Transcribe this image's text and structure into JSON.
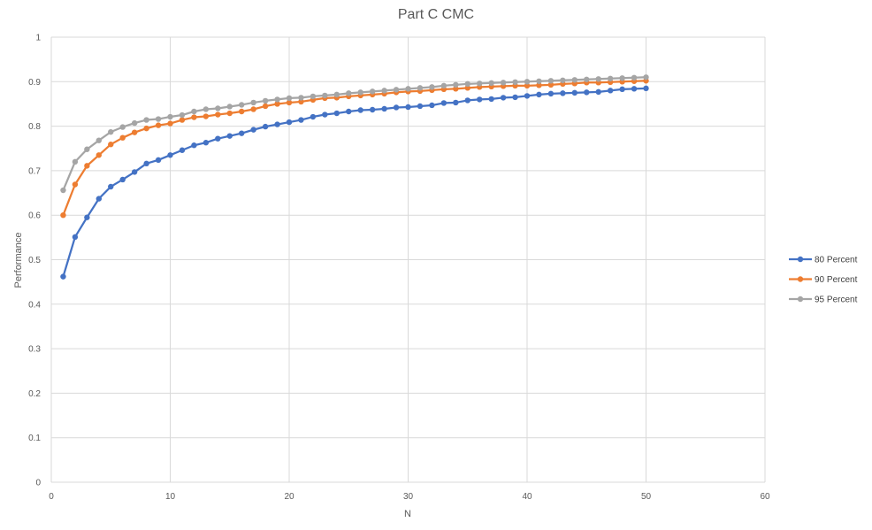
{
  "chart_data": {
    "type": "line",
    "title": "Part C CMC",
    "xlabel": "N",
    "ylabel": "Performance",
    "xlim": [
      0,
      60
    ],
    "ylim": [
      0,
      1
    ],
    "x_ticks": [
      "0",
      "10",
      "20",
      "30",
      "40",
      "50",
      "60"
    ],
    "y_ticks": [
      "0",
      "0.1",
      "0.2",
      "0.3",
      "0.4",
      "0.5",
      "0.6",
      "0.7",
      "0.8",
      "0.9",
      "1"
    ],
    "grid": true,
    "legend_position": "right",
    "x": [
      1,
      2,
      3,
      4,
      5,
      6,
      7,
      8,
      9,
      10,
      11,
      12,
      13,
      14,
      15,
      16,
      17,
      18,
      19,
      20,
      21,
      22,
      23,
      24,
      25,
      26,
      27,
      28,
      29,
      30,
      31,
      32,
      33,
      34,
      35,
      36,
      37,
      38,
      39,
      40,
      41,
      42,
      43,
      44,
      45,
      46,
      47,
      48,
      49,
      50
    ],
    "series": [
      {
        "name": "80 Percent",
        "color": "#4472c4",
        "values": [
          0.462,
          0.551,
          0.595,
          0.637,
          0.664,
          0.68,
          0.697,
          0.716,
          0.724,
          0.735,
          0.746,
          0.757,
          0.763,
          0.772,
          0.778,
          0.784,
          0.792,
          0.799,
          0.804,
          0.809,
          0.814,
          0.821,
          0.826,
          0.829,
          0.833,
          0.836,
          0.837,
          0.839,
          0.842,
          0.843,
          0.845,
          0.847,
          0.852,
          0.853,
          0.858,
          0.86,
          0.861,
          0.864,
          0.865,
          0.868,
          0.871,
          0.873,
          0.874,
          0.875,
          0.876,
          0.877,
          0.88,
          0.883,
          0.884,
          0.885
        ]
      },
      {
        "name": "90 Percent",
        "color": "#ed7d31",
        "values": [
          0.6,
          0.669,
          0.711,
          0.735,
          0.759,
          0.774,
          0.786,
          0.795,
          0.802,
          0.806,
          0.814,
          0.82,
          0.822,
          0.826,
          0.829,
          0.833,
          0.838,
          0.845,
          0.85,
          0.853,
          0.855,
          0.859,
          0.863,
          0.864,
          0.867,
          0.869,
          0.871,
          0.873,
          0.876,
          0.878,
          0.879,
          0.881,
          0.883,
          0.884,
          0.886,
          0.888,
          0.889,
          0.89,
          0.891,
          0.891,
          0.892,
          0.893,
          0.895,
          0.896,
          0.898,
          0.898,
          0.899,
          0.9,
          0.901,
          0.902
        ]
      },
      {
        "name": "95 Percent",
        "color": "#a5a5a5",
        "values": [
          0.656,
          0.72,
          0.748,
          0.768,
          0.787,
          0.798,
          0.807,
          0.814,
          0.816,
          0.821,
          0.825,
          0.833,
          0.838,
          0.84,
          0.844,
          0.848,
          0.853,
          0.857,
          0.86,
          0.863,
          0.864,
          0.867,
          0.869,
          0.871,
          0.874,
          0.876,
          0.878,
          0.88,
          0.882,
          0.884,
          0.886,
          0.888,
          0.891,
          0.893,
          0.895,
          0.896,
          0.897,
          0.898,
          0.899,
          0.9,
          0.901,
          0.902,
          0.903,
          0.904,
          0.905,
          0.906,
          0.907,
          0.908,
          0.909,
          0.91
        ]
      }
    ]
  }
}
